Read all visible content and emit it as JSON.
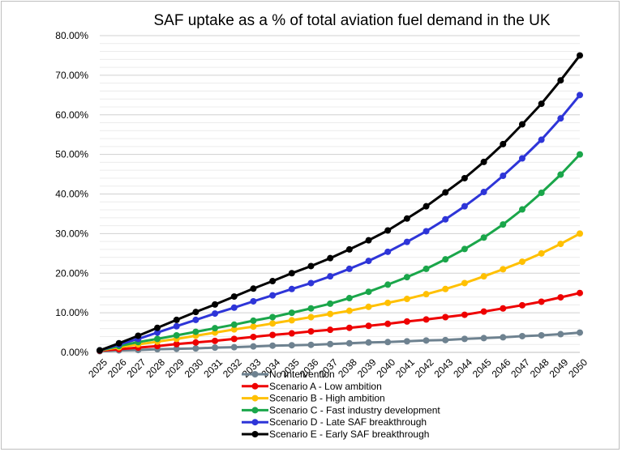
{
  "chart_data": {
    "type": "line",
    "title": "SAF uptake as a % of total aviation fuel demand in the UK",
    "xlabel": "",
    "ylabel": "",
    "ylim": [
      0,
      80
    ],
    "yticks": [
      "0.00%",
      "10.00%",
      "20.00%",
      "30.00%",
      "40.00%",
      "50.00%",
      "60.00%",
      "70.00%",
      "80.00%"
    ],
    "grid": true,
    "legend_position": "bottom",
    "x": [
      "2025",
      "2026",
      "2027",
      "2028",
      "2029",
      "2030",
      "2031",
      "2032",
      "2033",
      "2034",
      "2035",
      "2036",
      "2037",
      "2038",
      "2039",
      "2040",
      "2041",
      "2042",
      "2043",
      "2044",
      "2045",
      "2046",
      "2047",
      "2048",
      "2049",
      "2050"
    ],
    "series": [
      {
        "name": "No intervention",
        "color": "#6e8290",
        "values": [
          0.3,
          0.5,
          0.6,
          0.8,
          0.9,
          1.0,
          1.2,
          1.3,
          1.5,
          1.7,
          1.8,
          1.9,
          2.1,
          2.3,
          2.5,
          2.6,
          2.8,
          3.0,
          3.1,
          3.4,
          3.6,
          3.8,
          4.1,
          4.3,
          4.6,
          5.0
        ]
      },
      {
        "name": "Scenario A - Low ambition",
        "color": "#ee0000",
        "values": [
          0.4,
          0.8,
          1.2,
          1.6,
          2.1,
          2.5,
          2.9,
          3.4,
          3.9,
          4.4,
          4.8,
          5.3,
          5.7,
          6.2,
          6.7,
          7.2,
          7.8,
          8.3,
          8.9,
          9.5,
          10.3,
          11.1,
          11.9,
          12.8,
          13.9,
          15.0
        ]
      },
      {
        "name": "Scenario B - High ambition",
        "color": "#ffc000",
        "values": [
          0.5,
          1.3,
          2.0,
          2.7,
          3.4,
          4.2,
          5.0,
          5.8,
          6.5,
          7.3,
          8.1,
          8.9,
          9.7,
          10.5,
          11.5,
          12.5,
          13.5,
          14.7,
          16.0,
          17.5,
          19.2,
          21.0,
          22.9,
          25.0,
          27.4,
          30.0
        ]
      },
      {
        "name": "Scenario C - Fast industry development",
        "color": "#1aa64a",
        "values": [
          0.5,
          1.6,
          2.6,
          3.4,
          4.3,
          5.2,
          6.1,
          7.0,
          8.0,
          8.9,
          10.0,
          11.1,
          12.3,
          13.7,
          15.3,
          17.1,
          19.0,
          21.1,
          23.5,
          26.1,
          29.0,
          32.3,
          36.1,
          40.3,
          44.9,
          50.0
        ]
      },
      {
        "name": "Scenario D - Late SAF breakthrough",
        "color": "#2e35d8",
        "values": [
          0.5,
          2.0,
          3.4,
          5.0,
          6.6,
          8.2,
          9.8,
          11.3,
          12.9,
          14.4,
          16.0,
          17.5,
          19.2,
          21.1,
          23.1,
          25.4,
          27.9,
          30.6,
          33.6,
          36.9,
          40.5,
          44.6,
          49.0,
          53.7,
          59.1,
          65.0
        ]
      },
      {
        "name": "Scenario E - Early SAF breakthrough",
        "color": "#000000",
        "values": [
          0.5,
          2.3,
          4.2,
          6.2,
          8.2,
          10.2,
          12.1,
          14.1,
          16.1,
          18.0,
          20.0,
          21.8,
          23.8,
          26.0,
          28.3,
          30.8,
          33.8,
          36.9,
          40.4,
          44.0,
          48.1,
          52.6,
          57.6,
          62.8,
          68.7,
          75.0
        ]
      }
    ]
  }
}
